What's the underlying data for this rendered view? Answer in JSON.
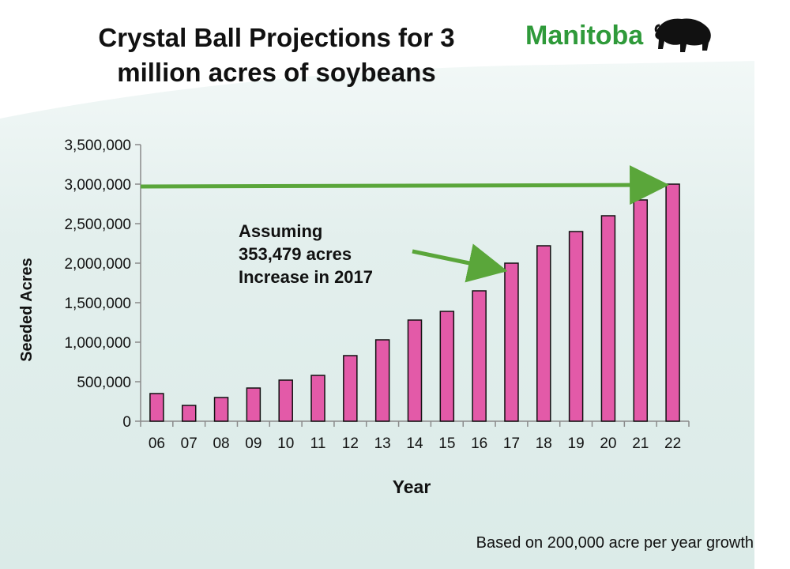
{
  "header": {
    "title_line1": "Crystal Ball Projections for 3",
    "title_line2": "million acres of soybeans",
    "logo_text": "Manitoba"
  },
  "annotation": {
    "line1": "Assuming",
    "line2": "353,479 acres",
    "line3": "Increase in 2017"
  },
  "footnote": "Based on 200,000 acre per year growth",
  "colors": {
    "bar_fill": "#e35aa8",
    "bar_stroke": "#111111",
    "arrow": "#5aa63a",
    "logo_green": "#2f9a3a",
    "background_tint": "#dfeeec"
  },
  "icons": {
    "logo_icon": "bison-icon"
  },
  "chart_data": {
    "type": "bar",
    "title": "Crystal Ball Projections for 3 million acres of soybeans",
    "xlabel": "Year",
    "ylabel": "Seeded Acres",
    "categories": [
      "06",
      "07",
      "08",
      "09",
      "10",
      "11",
      "12",
      "13",
      "14",
      "15",
      "16",
      "17",
      "18",
      "19",
      "20",
      "21",
      "22"
    ],
    "values": [
      350000,
      200000,
      300000,
      420000,
      520000,
      580000,
      830000,
      1030000,
      1280000,
      1390000,
      1650000,
      2000000,
      2220000,
      2400000,
      2600000,
      2800000,
      3000000
    ],
    "ylim": [
      0,
      3500000
    ],
    "yticks": [
      0,
      500000,
      1000000,
      1500000,
      2000000,
      2500000,
      3000000,
      3500000
    ],
    "ytick_labels": [
      "0",
      "500,000",
      "1,000,000",
      "1,500,000",
      "2,000,000",
      "2,500,000",
      "3,000,000",
      "3,500,000"
    ],
    "grid": false,
    "annotations": [
      {
        "text": "Assuming 353,479 acres Increase in 2017",
        "target_category": "17",
        "target_value": 2000000
      },
      {
        "text": "",
        "target_category": "22",
        "target_value": 3000000,
        "from_value": 3000000
      }
    ]
  }
}
